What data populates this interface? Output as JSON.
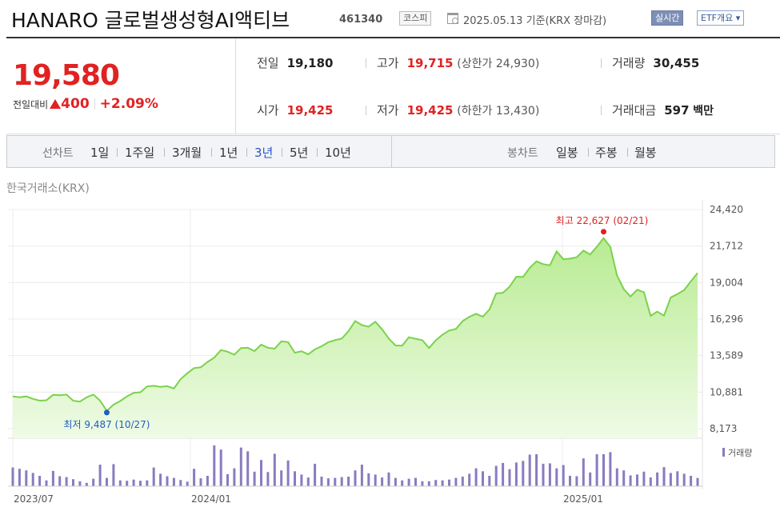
{
  "header": {
    "title": "HANARO 글로벌생성형AI액티브",
    "code": "461340",
    "market": "코스피",
    "date_text": "2025.05.13  기준(KRX 장마감)",
    "realtime_label": "실시간",
    "etf_label": "ETF개요"
  },
  "summary": {
    "price": "19,580",
    "change_label": "전일대비",
    "change_value": "400",
    "change_pct": "+2.09%"
  },
  "stats": {
    "prev_label": "전일",
    "prev": "19,180",
    "high_label": "고가",
    "high": "19,715",
    "upper_limit": "(상한가 24,930)",
    "volume_label": "거래량",
    "volume": "30,455",
    "open_label": "시가",
    "open": "19,425",
    "low_label": "저가",
    "low": "19,425",
    "lower_limit": "(하한가 13,430)",
    "amount_label": "거래대금",
    "amount": "597",
    "amount_unit": "백만"
  },
  "tabs": {
    "line_label": "선차트",
    "periods": [
      "1일",
      "1주일",
      "3개월",
      "1년",
      "3년",
      "5년",
      "10년"
    ],
    "active_period": "3년",
    "candle_label": "봉차트",
    "candles": [
      "일봉",
      "주봉",
      "월봉"
    ]
  },
  "exchange_label": "한국거래소(KRX)",
  "colors": {
    "up": "#e12222",
    "line": "#7bd24a",
    "fill": "#c9f0a9",
    "volume_bar": "#8a7bbf",
    "low_marker": "#1f5fbf"
  },
  "chart_data": {
    "type": "area",
    "y_ticks": [
      "24,420",
      "21,712",
      "19,004",
      "16,296",
      "13,589",
      "10,881",
      "8,173"
    ],
    "ylim": [
      8173,
      24420
    ],
    "x_tick_labels": [
      "2023/07",
      "2024/01",
      "2025/01"
    ],
    "high_annotation": "최고 22,627 (02/21)",
    "low_annotation": "최저 9,487 (10/27)",
    "volume_legend": "거래량",
    "price_series": [
      10560,
      10500,
      10560,
      10380,
      10250,
      10280,
      10680,
      10650,
      10700,
      10240,
      10180,
      10500,
      10700,
      10250,
      9487,
      9950,
      10220,
      10560,
      10830,
      10870,
      11300,
      11350,
      11270,
      11320,
      11150,
      11850,
      12280,
      12660,
      12720,
      13120,
      13440,
      14000,
      13880,
      13650,
      14150,
      14170,
      13920,
      14400,
      14170,
      14100,
      14650,
      14590,
      13800,
      13910,
      13680,
      14050,
      14280,
      14580,
      14730,
      14850,
      15410,
      16150,
      15850,
      15730,
      16100,
      15540,
      14850,
      14340,
      14330,
      14950,
      14840,
      14730,
      14150,
      14720,
      15140,
      15450,
      15560,
      16150,
      16470,
      16690,
      16470,
      17010,
      18200,
      18250,
      18700,
      19440,
      19420,
      20100,
      20580,
      20370,
      20290,
      21320,
      20730,
      20780,
      20880,
      21370,
      21090,
      21660,
      22300,
      21650,
      19520,
      18520,
      17970,
      18470,
      18280,
      16540,
      16850,
      16550,
      17900,
      18150,
      18450,
      19100,
      19710
    ],
    "volume_series": [
      0.45,
      0.42,
      0.38,
      0.32,
      0.25,
      0.14,
      0.37,
      0.24,
      0.22,
      0.17,
      0.12,
      0.08,
      0.18,
      0.52,
      0.2,
      0.53,
      0.14,
      0.13,
      0.16,
      0.13,
      0.14,
      0.45,
      0.3,
      0.24,
      0.2,
      0.15,
      0.11,
      0.42,
      0.19,
      0.25,
      0.98,
      0.88,
      0.29,
      0.43,
      0.93,
      0.84,
      0.35,
      0.63,
      0.34,
      0.78,
      0.38,
      0.62,
      0.36,
      0.28,
      0.21,
      0.54,
      0.23,
      0.19,
      0.2,
      0.22,
      0.23,
      0.38,
      0.52,
      0.31,
      0.28,
      0.21,
      0.33,
      0.2,
      0.14,
      0.18,
      0.2,
      0.12,
      0.12,
      0.15,
      0.14,
      0.16,
      0.2,
      0.23,
      0.3,
      0.43,
      0.36,
      0.25,
      0.49,
      0.56,
      0.41,
      0.57,
      0.61,
      0.76,
      0.77,
      0.54,
      0.55,
      0.43,
      0.51,
      0.25,
      0.24,
      0.67,
      0.33,
      0.77,
      0.77,
      0.82,
      0.43,
      0.38,
      0.26,
      0.28,
      0.35,
      0.21,
      0.33,
      0.46,
      0.32,
      0.36,
      0.3,
      0.25,
      0.2
    ]
  }
}
